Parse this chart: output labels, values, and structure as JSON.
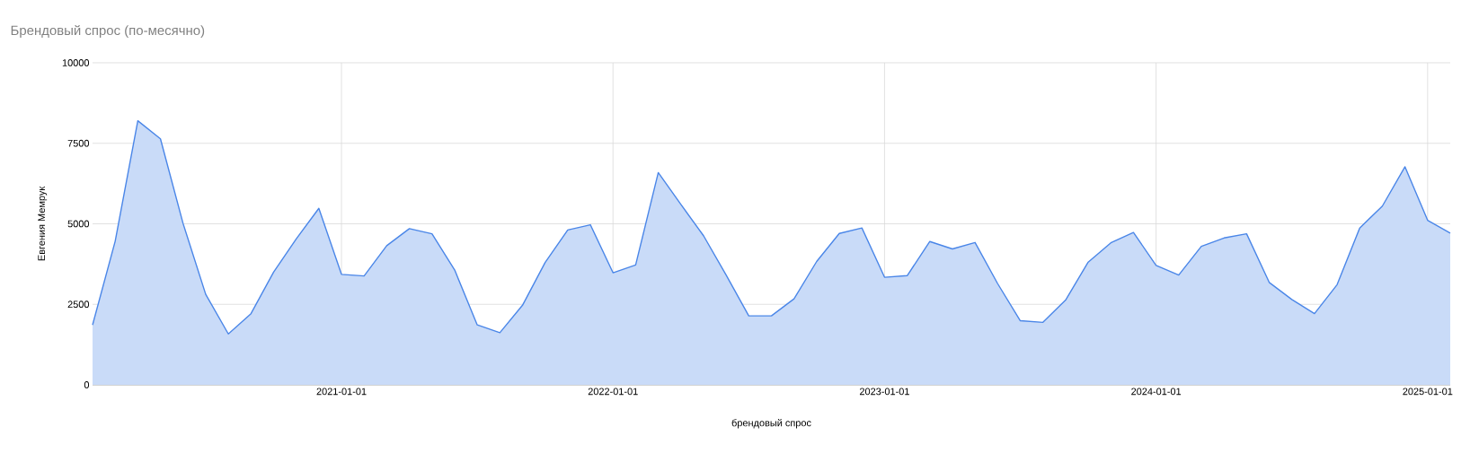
{
  "chart_data": {
    "type": "area",
    "title": "Брендовый спрос (по-месячно)",
    "xlabel": "брендовый спрос",
    "ylabel": "Евгения Мемрук",
    "x": [
      "2020-02",
      "2020-03",
      "2020-04",
      "2020-05",
      "2020-06",
      "2020-07",
      "2020-08",
      "2020-09",
      "2020-10",
      "2020-11",
      "2020-12",
      "2021-01",
      "2021-02",
      "2021-03",
      "2021-04",
      "2021-05",
      "2021-06",
      "2021-07",
      "2021-08",
      "2021-09",
      "2021-10",
      "2021-11",
      "2021-12",
      "2022-01",
      "2022-02",
      "2022-03",
      "2022-04",
      "2022-05",
      "2022-06",
      "2022-07",
      "2022-08",
      "2022-09",
      "2022-10",
      "2022-11",
      "2022-12",
      "2023-01",
      "2023-02",
      "2023-03",
      "2023-04",
      "2023-05",
      "2023-06",
      "2023-07",
      "2023-08",
      "2023-09",
      "2023-10",
      "2023-11",
      "2023-12",
      "2024-01",
      "2024-02",
      "2024-03",
      "2024-04",
      "2024-05",
      "2024-06",
      "2024-07",
      "2024-08",
      "2024-09",
      "2024-10",
      "2024-11",
      "2024-12",
      "2025-01",
      "2025-02"
    ],
    "series": [
      {
        "color": "#4a86e8",
        "values": [
          1860,
          4460,
          8200,
          7640,
          5010,
          2810,
          1580,
          2210,
          3500,
          4530,
          5480,
          3430,
          3380,
          4320,
          4850,
          4690,
          3570,
          1860,
          1620,
          2470,
          3800,
          4810,
          4970,
          3480,
          3720,
          6590,
          5600,
          4630,
          3410,
          2140,
          2140,
          2670,
          3830,
          4700,
          4870,
          3340,
          3390,
          4450,
          4220,
          4420,
          3140,
          1990,
          1940,
          2630,
          3810,
          4410,
          4730,
          3710,
          3410,
          4300,
          4560,
          4690,
          3180,
          2650,
          2210,
          3110,
          4870,
          5550,
          6770,
          5110,
          4710
        ]
      }
    ],
    "xlim": [
      "2020-02",
      "2025-02"
    ],
    "xticks": [
      "2021-01-01",
      "2022-01-01",
      "2023-01-01",
      "2024-01-01",
      "2025-01-01"
    ],
    "ylim": [
      0,
      10000
    ],
    "yticks": [
      0,
      2500,
      5000,
      7500,
      10000
    ],
    "grid": true
  }
}
